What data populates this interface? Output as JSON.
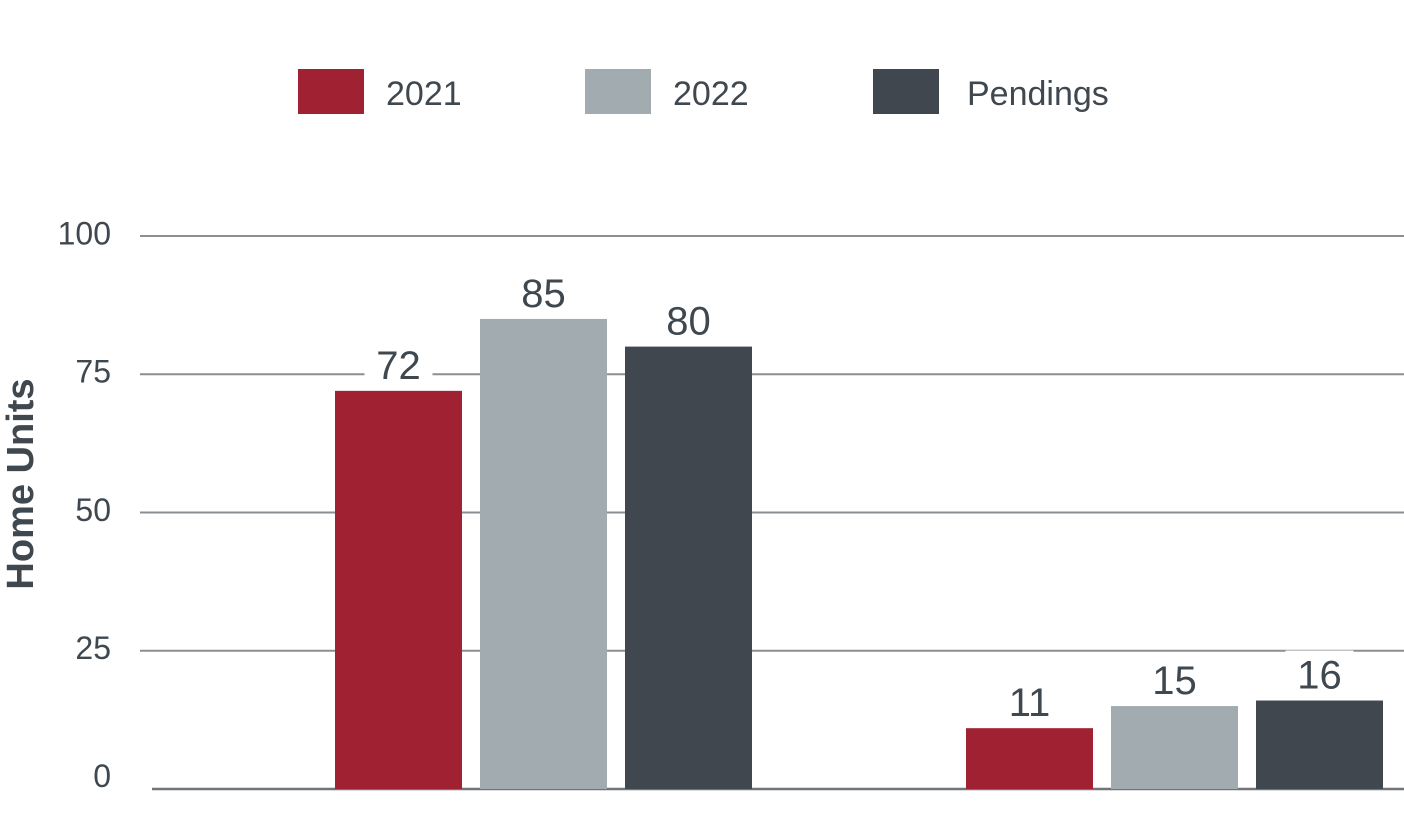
{
  "chart_data": {
    "type": "bar",
    "title": "",
    "xlabel": "",
    "ylabel": "Home Units",
    "ylim": [
      0,
      100
    ],
    "yticks": [
      0,
      25,
      50,
      75,
      100
    ],
    "grid": true,
    "legend_position": "top-center",
    "categories": [
      "",
      ""
    ],
    "series": [
      {
        "name": "2021",
        "color": "#a02232",
        "values": [
          72,
          11
        ]
      },
      {
        "name": "2022",
        "color": "#a2abb0",
        "values": [
          85,
          15
        ]
      },
      {
        "name": "Pendings",
        "color": "#40474e",
        "values": [
          80,
          16
        ]
      }
    ]
  }
}
